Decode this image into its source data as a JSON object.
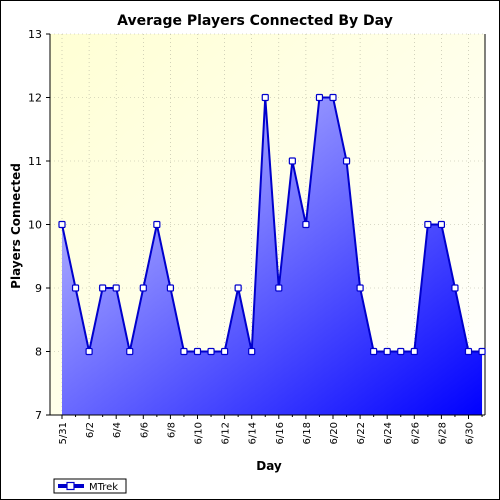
{
  "chart_data": {
    "type": "area",
    "title": "Average Players Connected By Day",
    "xlabel": "Day",
    "ylabel": "Players Connected",
    "ylim": [
      7,
      13
    ],
    "yticks": [
      7,
      8,
      9,
      10,
      11,
      12,
      13
    ],
    "grid": true,
    "legend_position": "bottom-left",
    "x": [
      "5/31",
      "6/1",
      "6/2",
      "6/3",
      "6/4",
      "6/5",
      "6/6",
      "6/7",
      "6/8",
      "6/9",
      "6/10",
      "6/11",
      "6/12",
      "6/13",
      "6/14",
      "6/15",
      "6/16",
      "6/17",
      "6/18",
      "6/19",
      "6/20",
      "6/21",
      "6/22",
      "6/23",
      "6/24",
      "6/25",
      "6/26",
      "6/27",
      "6/28",
      "6/29",
      "6/30",
      "7/1"
    ],
    "x_tick_labels": [
      "5/31",
      "",
      "6/2",
      "",
      "6/4",
      "",
      "6/6",
      "",
      "6/8",
      "",
      "6/10",
      "",
      "6/12",
      "",
      "6/14",
      "",
      "6/16",
      "",
      "6/18",
      "",
      "6/20",
      "",
      "6/22",
      "",
      "6/24",
      "",
      "6/26",
      "",
      "6/28",
      "",
      "6/30",
      ""
    ],
    "series": [
      {
        "name": "MTrek",
        "values": [
          10,
          9,
          8,
          9,
          9,
          8,
          9,
          10,
          9,
          8,
          8,
          8,
          8,
          9,
          8,
          12,
          9,
          11,
          10,
          12,
          12,
          11,
          9,
          8,
          8,
          8,
          8,
          10,
          10,
          9,
          8,
          8
        ]
      }
    ],
    "colors": {
      "background_top": "#ffffd8",
      "line": "#0000cc",
      "fill_light": "#c8c8ff",
      "fill_dark": "#0000ff",
      "marker_fill": "#ffffff"
    }
  }
}
